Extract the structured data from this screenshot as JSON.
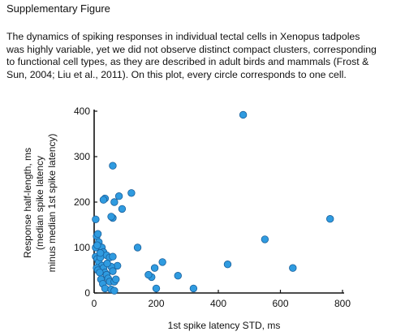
{
  "page": {
    "heading": "Supplementary Figure",
    "caption_lines": [
      "The dynamics of spiking responses in individual tectal cells in Xenopus tadpoles",
      "was highly variable, yet we did not observe distinct compact clusters, corresponding",
      "to functional cell types, as they are described in adult birds and mammals (Frost &",
      "Sun, 2004; Liu et al., 2011). On this plot, every circle corresponds to one cell."
    ]
  },
  "chart_data": {
    "type": "scatter",
    "title": "",
    "xlabel": "1st spike latency STD, ms",
    "ylabel_lines": [
      "Response half-length, ms",
      "(median spike latency",
      "minus median 1st spike latency)"
    ],
    "xlim": [
      0,
      800
    ],
    "ylim": [
      0,
      400
    ],
    "xticks": [
      0,
      200,
      400,
      600,
      800
    ],
    "yticks": [
      0,
      100,
      200,
      300,
      400
    ],
    "grid": false,
    "marker_color": "#2f9be0",
    "marker_edge": "#1a5f9a",
    "points": [
      [
        480,
        392
      ],
      [
        60,
        280
      ],
      [
        760,
        163
      ],
      [
        550,
        118
      ],
      [
        430,
        63
      ],
      [
        640,
        55
      ],
      [
        320,
        10
      ],
      [
        270,
        38
      ],
      [
        220,
        68
      ],
      [
        200,
        10
      ],
      [
        195,
        55
      ],
      [
        185,
        35
      ],
      [
        175,
        40
      ],
      [
        140,
        100
      ],
      [
        120,
        220
      ],
      [
        90,
        185
      ],
      [
        80,
        213
      ],
      [
        65,
        200
      ],
      [
        60,
        165
      ],
      [
        55,
        168
      ],
      [
        35,
        208
      ],
      [
        30,
        205
      ],
      [
        5,
        162
      ],
      [
        8,
        125
      ],
      [
        12,
        130
      ],
      [
        15,
        112
      ],
      [
        25,
        100
      ],
      [
        30,
        90
      ],
      [
        40,
        83
      ],
      [
        50,
        78
      ],
      [
        60,
        80
      ],
      [
        75,
        60
      ],
      [
        5,
        80
      ],
      [
        10,
        75
      ],
      [
        15,
        68
      ],
      [
        20,
        78
      ],
      [
        25,
        60
      ],
      [
        30,
        55
      ],
      [
        35,
        45
      ],
      [
        40,
        40
      ],
      [
        45,
        32
      ],
      [
        50,
        25
      ],
      [
        55,
        58
      ],
      [
        60,
        48
      ],
      [
        65,
        25
      ],
      [
        8,
        55
      ],
      [
        12,
        50
      ],
      [
        18,
        45
      ],
      [
        22,
        30
      ],
      [
        28,
        20
      ],
      [
        35,
        10
      ],
      [
        55,
        8
      ],
      [
        65,
        5
      ],
      [
        5,
        100
      ],
      [
        10,
        105
      ],
      [
        20,
        88
      ],
      [
        42,
        65
      ],
      [
        70,
        30
      ]
    ]
  }
}
